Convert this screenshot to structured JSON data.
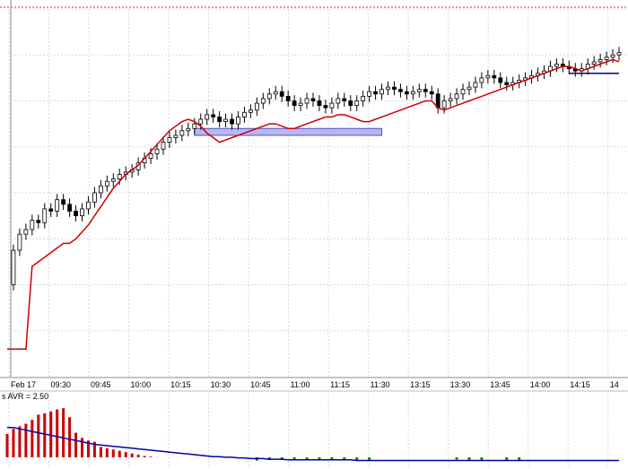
{
  "colors": {
    "background": "#ffffff",
    "grid": "#d9d9d9",
    "candle": "#000000",
    "average_line": "#cc0000",
    "support_zone_fill": "#b8b8f0",
    "support_zone_stroke": "#5050c0",
    "resistance_line": "#00008b",
    "volume_up": "#cc0000",
    "volume_down": "#008800",
    "volume_average": "#0000aa",
    "top_dotted": "#cc3333"
  },
  "chart_data": [
    {
      "type": "candlestick",
      "date_label": "Feb 17",
      "x_tick_labels": [
        "Feb 17",
        "09:30",
        "09:45",
        "10:00",
        "10:15",
        "10:30",
        "10:45",
        "11:00",
        "11:15",
        "11:30",
        "13:15",
        "13:30",
        "13:45",
        "14:00",
        "14:15",
        "14"
      ],
      "price": [
        [
          0,
          40.0
        ],
        [
          1,
          55.0
        ],
        [
          2,
          62.0
        ],
        [
          3,
          64.0
        ],
        [
          4,
          68.0
        ],
        [
          5,
          67.0
        ],
        [
          6,
          73.0
        ],
        [
          7,
          72.0
        ],
        [
          8,
          77.0
        ],
        [
          9,
          75.0
        ],
        [
          10,
          72.0
        ],
        [
          11,
          70.0
        ],
        [
          12,
          73.0
        ],
        [
          13,
          76.0
        ],
        [
          14,
          80.0
        ],
        [
          15,
          83.0
        ],
        [
          16,
          85.0
        ],
        [
          17,
          86.0
        ],
        [
          18,
          88.0
        ],
        [
          19,
          89.0
        ],
        [
          20,
          90.0
        ],
        [
          21,
          93.0
        ],
        [
          22,
          95.0
        ],
        [
          23,
          97.0
        ],
        [
          24,
          99.0
        ],
        [
          25,
          102.0
        ],
        [
          26,
          104.0
        ],
        [
          27,
          105.0
        ],
        [
          28,
          107.0
        ],
        [
          29,
          108.0
        ],
        [
          30,
          110.0
        ],
        [
          31,
          112.0
        ],
        [
          32,
          114.0
        ],
        [
          33,
          113.0
        ],
        [
          34,
          111.0
        ],
        [
          35,
          112.0
        ],
        [
          36,
          110.0
        ],
        [
          37,
          113.0
        ],
        [
          38,
          115.0
        ],
        [
          39,
          116.0
        ],
        [
          40,
          119.0
        ],
        [
          41,
          121.0
        ],
        [
          42,
          123.0
        ],
        [
          43,
          124.0
        ],
        [
          44,
          122.0
        ],
        [
          45,
          120.0
        ],
        [
          46,
          118.0
        ],
        [
          47,
          119.0
        ],
        [
          48,
          121.0
        ],
        [
          49,
          120.0
        ],
        [
          50,
          118.0
        ],
        [
          51,
          117.0
        ],
        [
          52,
          119.0
        ],
        [
          53,
          121.0
        ],
        [
          54,
          120.0
        ],
        [
          55,
          118.0
        ],
        [
          56,
          120.0
        ],
        [
          57,
          122.0
        ],
        [
          58,
          124.0
        ],
        [
          59,
          123.0
        ],
        [
          60,
          125.0
        ],
        [
          61,
          126.0
        ],
        [
          62,
          125.0
        ],
        [
          63,
          124.0
        ],
        [
          64,
          123.0
        ],
        [
          65,
          124.0
        ],
        [
          66,
          125.0
        ],
        [
          67,
          124.0
        ],
        [
          68,
          123.0
        ],
        [
          69,
          117.0
        ],
        [
          70,
          120.0
        ],
        [
          71,
          121.0
        ],
        [
          72,
          123.0
        ],
        [
          73,
          125.0
        ],
        [
          74,
          126.0
        ],
        [
          75,
          128.0
        ],
        [
          76,
          130.0
        ],
        [
          77,
          131.0
        ],
        [
          78,
          130.0
        ],
        [
          79,
          128.0
        ],
        [
          80,
          127.0
        ],
        [
          81,
          128.0
        ],
        [
          82,
          129.0
        ],
        [
          83,
          130.0
        ],
        [
          84,
          131.0
        ],
        [
          85,
          132.0
        ],
        [
          86,
          133.0
        ],
        [
          87,
          135.0
        ],
        [
          88,
          136.0
        ],
        [
          89,
          135.0
        ],
        [
          90,
          134.0
        ],
        [
          91,
          133.0
        ],
        [
          92,
          134.0
        ],
        [
          93,
          136.0
        ],
        [
          94,
          137.0
        ],
        [
          95,
          138.0
        ],
        [
          96,
          139.0
        ],
        [
          97,
          140.0
        ],
        [
          98,
          141.0
        ]
      ],
      "average_line": [
        [
          0,
          12.0
        ],
        [
          1,
          12.0
        ],
        [
          2,
          12.0
        ],
        [
          3,
          12.0
        ],
        [
          4,
          48.0
        ],
        [
          5,
          50.0
        ],
        [
          6,
          52.0
        ],
        [
          7,
          54.0
        ],
        [
          8,
          56.0
        ],
        [
          9,
          58.0
        ],
        [
          10,
          58.0
        ],
        [
          11,
          60.0
        ],
        [
          12,
          63.0
        ],
        [
          13,
          66.0
        ],
        [
          14,
          70.0
        ],
        [
          15,
          74.0
        ],
        [
          16,
          78.0
        ],
        [
          17,
          82.0
        ],
        [
          18,
          85.0
        ],
        [
          19,
          88.0
        ],
        [
          20,
          90.0
        ],
        [
          21,
          92.0
        ],
        [
          22,
          95.0
        ],
        [
          23,
          98.0
        ],
        [
          24,
          101.0
        ],
        [
          25,
          104.0
        ],
        [
          26,
          107.0
        ],
        [
          27,
          109.0
        ],
        [
          28,
          111.0
        ],
        [
          29,
          112.0
        ],
        [
          30,
          111.0
        ],
        [
          31,
          109.0
        ],
        [
          32,
          106.0
        ],
        [
          33,
          104.0
        ],
        [
          34,
          102.0
        ],
        [
          35,
          103.0
        ],
        [
          36,
          104.0
        ],
        [
          37,
          105.0
        ],
        [
          38,
          106.0
        ],
        [
          39,
          107.0
        ],
        [
          40,
          108.0
        ],
        [
          41,
          109.0
        ],
        [
          42,
          110.0
        ],
        [
          43,
          110.0
        ],
        [
          44,
          109.0
        ],
        [
          45,
          108.0
        ],
        [
          46,
          108.0
        ],
        [
          47,
          109.0
        ],
        [
          48,
          110.0
        ],
        [
          49,
          111.0
        ],
        [
          50,
          112.0
        ],
        [
          51,
          113.0
        ],
        [
          52,
          113.0
        ],
        [
          53,
          114.0
        ],
        [
          54,
          114.0
        ],
        [
          55,
          113.0
        ],
        [
          56,
          112.0
        ],
        [
          57,
          111.0
        ],
        [
          58,
          111.0
        ],
        [
          59,
          112.0
        ],
        [
          60,
          113.0
        ],
        [
          61,
          114.0
        ],
        [
          62,
          115.0
        ],
        [
          63,
          116.0
        ],
        [
          64,
          117.0
        ],
        [
          65,
          118.0
        ],
        [
          66,
          119.0
        ],
        [
          67,
          120.0
        ],
        [
          68,
          120.0
        ],
        [
          69,
          117.0
        ],
        [
          70,
          116.0
        ],
        [
          71,
          117.0
        ],
        [
          72,
          118.0
        ],
        [
          73,
          119.0
        ],
        [
          74,
          120.0
        ],
        [
          75,
          121.0
        ],
        [
          76,
          122.0
        ],
        [
          77,
          123.0
        ],
        [
          78,
          124.0
        ],
        [
          79,
          125.0
        ],
        [
          80,
          126.0
        ],
        [
          81,
          127.0
        ],
        [
          82,
          128.0
        ],
        [
          83,
          129.0
        ],
        [
          84,
          130.0
        ],
        [
          85,
          131.0
        ],
        [
          86,
          132.0
        ],
        [
          87,
          133.0
        ],
        [
          88,
          134.0
        ],
        [
          89,
          135.0
        ],
        [
          90,
          135.0
        ],
        [
          91,
          134.0
        ],
        [
          92,
          133.0
        ],
        [
          93,
          134.0
        ],
        [
          94,
          135.0
        ],
        [
          95,
          136.0
        ],
        [
          96,
          137.0
        ],
        [
          97,
          138.0
        ],
        [
          98,
          137.0
        ]
      ],
      "support_zone": {
        "x_from": 30,
        "x_to": 60,
        "y_from": 105,
        "y_to": 108
      },
      "resistance_line": {
        "x_from": 90,
        "x_to": 124,
        "y": 132
      },
      "grid": true
    },
    {
      "type": "bar",
      "label": "s AVR = 2.50",
      "volume": [
        50,
        58,
        62,
        66,
        72,
        80,
        82,
        85,
        88,
        90,
        76,
        52,
        44,
        40,
        38,
        30,
        28,
        26,
        24,
        22,
        20,
        18,
        16,
        15,
        14,
        14,
        12,
        12,
        10,
        10,
        9,
        9,
        8,
        8,
        8,
        7,
        7,
        7,
        6,
        6,
        6,
        6,
        5,
        5,
        5,
        4,
        4,
        4,
        4,
        4,
        5,
        5,
        5,
        6,
        6,
        6,
        6,
        6,
        5,
        5,
        4,
        4,
        4,
        4,
        4,
        4,
        4,
        4,
        4,
        4,
        4,
        4,
        4,
        4,
        5,
        5,
        5,
        5,
        5,
        5,
        6,
        6,
        6,
        6,
        6,
        6,
        6,
        6,
        7,
        7,
        7,
        7,
        7,
        7,
        8,
        8,
        8,
        8,
        9
      ],
      "average": [
        60,
        60,
        58,
        56,
        54,
        52,
        50,
        48,
        46,
        44,
        42,
        40,
        38,
        36,
        34,
        33,
        32,
        31,
        30,
        29,
        28,
        27,
        26,
        25,
        24,
        23,
        22,
        21,
        20,
        19,
        18,
        17,
        16,
        15,
        15,
        14,
        14,
        13,
        13,
        12,
        12,
        12,
        11,
        11,
        11,
        10,
        10,
        10,
        10,
        10,
        10,
        10,
        10,
        10,
        10,
        10,
        9,
        9,
        9,
        9,
        9,
        9,
        9,
        9,
        9,
        9,
        9,
        9,
        9,
        9,
        9,
        9,
        9,
        9,
        9,
        9,
        9,
        9,
        9,
        9,
        9,
        9,
        9,
        9,
        9,
        9,
        9,
        9,
        9,
        9,
        9,
        9,
        9,
        9,
        9,
        9,
        9,
        9,
        9
      ],
      "down_bars": [
        40,
        42,
        44,
        46,
        48,
        50,
        52,
        54,
        56,
        58,
        72,
        74,
        76,
        80,
        82
      ]
    }
  ]
}
